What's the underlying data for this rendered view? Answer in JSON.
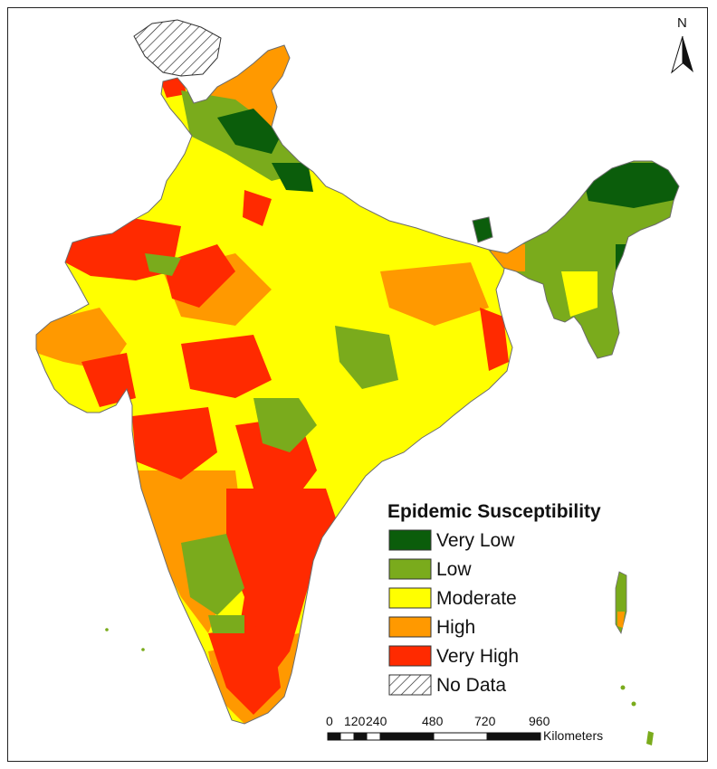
{
  "map": {
    "north_label": "N",
    "colors": {
      "very_low": "#0b5d0b",
      "low": "#7aab1c",
      "moderate": "#ffff00",
      "high": "#ff9900",
      "very_high": "#ff2a00",
      "no_data": "#ffffff",
      "border": "#6b6b6b"
    }
  },
  "legend": {
    "title": "Epidemic Susceptibility",
    "items": [
      {
        "label": "Very Low",
        "color": "#0b5d0b",
        "pattern": "solid"
      },
      {
        "label": "Low",
        "color": "#7aab1c",
        "pattern": "solid"
      },
      {
        "label": "Moderate",
        "color": "#ffff00",
        "pattern": "solid"
      },
      {
        "label": "High",
        "color": "#ff9900",
        "pattern": "solid"
      },
      {
        "label": "Very High",
        "color": "#ff2a00",
        "pattern": "solid"
      },
      {
        "label": "No Data",
        "color": "#ffffff",
        "pattern": "hatch"
      }
    ]
  },
  "scale_bar": {
    "ticks": [
      "0",
      "120",
      "240",
      "480",
      "720",
      "960"
    ],
    "unit": "Kilometers"
  }
}
